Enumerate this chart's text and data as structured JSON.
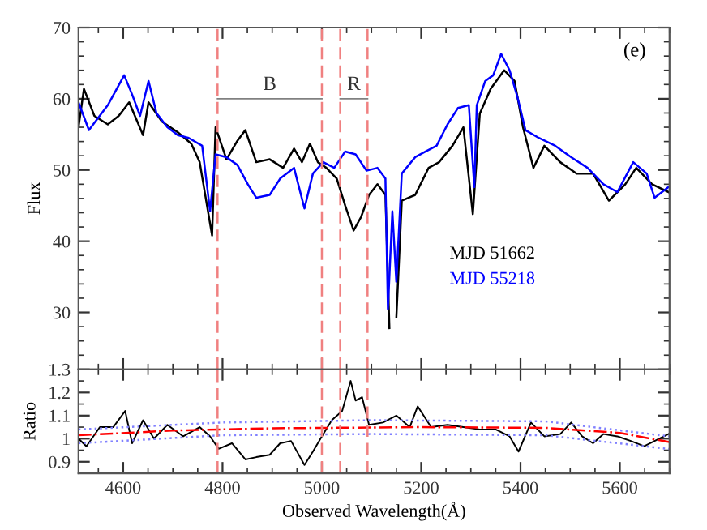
{
  "chart_data": [
    {
      "type": "line",
      "ylabel": "Flux",
      "xlim": [
        4510,
        5700
      ],
      "ylim": [
        22,
        70
      ],
      "xticks": [
        4600,
        4800,
        5000,
        5200,
        5400,
        5600
      ],
      "yticks": [
        30,
        40,
        50,
        60,
        70
      ],
      "tick_labels": "y",
      "legend": "center right",
      "grid": false,
      "annotations": [
        "(e)",
        "B",
        "R"
      ],
      "ref_lines": [
        {
          "axis": "x",
          "value": 4790,
          "color": "#f08080",
          "line_style": "dashed"
        },
        {
          "axis": "x",
          "value": 5000,
          "color": "#f08080",
          "line_style": "dashed"
        },
        {
          "axis": "x",
          "value": 5037,
          "color": "#f08080",
          "line_style": "dashed"
        },
        {
          "axis": "x",
          "value": 5092,
          "color": "#f08080",
          "line_style": "dashed"
        }
      ],
      "series": [
        {
          "name": "MJD 51662",
          "color": "#000000",
          "x": [
            4510,
            4521,
            4542,
            4569,
            4591,
            4612,
            4640,
            4651,
            4678,
            4710,
            4737,
            4754,
            4779,
            4786,
            4808,
            4830,
            4846,
            4868,
            4895,
            4922,
            4944,
            4960,
            4976,
            4992,
            5009,
            5030,
            5047,
            5064,
            5079,
            5095,
            5112,
            5128,
            5136,
            5142,
            5150,
            5161,
            5188,
            5215,
            5236,
            5263,
            5285,
            5304,
            5318,
            5340,
            5367,
            5388,
            5405,
            5426,
            5448,
            5480,
            5513,
            5546,
            5578,
            5611,
            5633,
            5665,
            5698
          ],
          "values": [
            56,
            61.4,
            57.6,
            56.4,
            57.6,
            59.5,
            54.9,
            59.5,
            56.8,
            55.3,
            53.7,
            51.1,
            40.8,
            56,
            51.5,
            54.1,
            55.6,
            51.1,
            51.5,
            50.3,
            53,
            51.1,
            53.7,
            51.1,
            50.3,
            48.8,
            45,
            41.5,
            43.4,
            46.5,
            48,
            46.5,
            27.8,
            null,
            29.3,
            45.7,
            46.5,
            50.3,
            51.1,
            53.4,
            56,
            43.8,
            57.9,
            61.4,
            64,
            62.5,
            56,
            50.3,
            53.4,
            51.1,
            49.5,
            49.5,
            45.7,
            48,
            50.3,
            48,
            46.9
          ]
        },
        {
          "name": "MJD 55218",
          "color": "#0000ff",
          "x": [
            4510,
            4531,
            4569,
            4602,
            4618,
            4634,
            4651,
            4667,
            4689,
            4710,
            4732,
            4759,
            4775,
            4786,
            4808,
            4830,
            4851,
            4868,
            4895,
            4916,
            4944,
            4965,
            4982,
            5003,
            5025,
            5047,
            5068,
            5090,
            5112,
            5128,
            5133,
            5142,
            5150,
            5161,
            5188,
            5209,
            5231,
            5253,
            5274,
            5296,
            5307,
            5312,
            5329,
            5345,
            5361,
            5378,
            5394,
            5410,
            5437,
            5470,
            5502,
            5535,
            5567,
            5595,
            5627,
            5654,
            5670,
            5698
          ],
          "values": [
            59.5,
            55.6,
            59.1,
            63.3,
            60.6,
            57.6,
            62.5,
            58,
            56,
            54.9,
            54.5,
            53.4,
            44.2,
            52.2,
            51.8,
            50.7,
            48,
            46.1,
            46.5,
            48.8,
            50.3,
            44.6,
            49.5,
            51.1,
            50.3,
            52.6,
            52.2,
            49.9,
            50.3,
            48.8,
            30.5,
            44.2,
            34.3,
            49.5,
            51.8,
            52.6,
            53.4,
            56.4,
            58.7,
            59.1,
            47.6,
            59.1,
            62.5,
            63.3,
            66.3,
            64,
            60.2,
            55.6,
            54.5,
            53.4,
            51.8,
            50.3,
            48,
            46.9,
            51.1,
            49.5,
            46.1,
            47.6
          ]
        },
        {
          "color": "#808080",
          "x": [
            4790,
            5000
          ],
          "values": [
            60,
            60
          ]
        },
        {
          "color": "#808080",
          "x": [
            5037,
            5092
          ],
          "values": [
            60,
            60
          ]
        }
      ]
    },
    {
      "type": "line",
      "ylabel": "Ratio",
      "xlabel": "Observed Wavelength(Å)",
      "xlim": [
        4510,
        5700
      ],
      "ylim": [
        0.85,
        1.3
      ],
      "xticks": [
        4600,
        4800,
        5000,
        5200,
        5400,
        5600
      ],
      "yticks": [
        0.9,
        1,
        1.1,
        1.2,
        1.3
      ],
      "grid": false,
      "ref_lines": [
        {
          "axis": "x",
          "value": 4790,
          "color": "#f08080",
          "line_style": "dashed"
        },
        {
          "axis": "x",
          "value": 5000,
          "color": "#f08080",
          "line_style": "dashed"
        },
        {
          "axis": "x",
          "value": 5037,
          "color": "#f08080",
          "line_style": "dashed"
        },
        {
          "axis": "x",
          "value": 5092,
          "color": "#f08080",
          "line_style": "dashed"
        }
      ],
      "series": [
        {
          "color": "#000000",
          "x": [
            4510,
            4526,
            4553,
            4580,
            4604,
            4618,
            4640,
            4662,
            4689,
            4721,
            4754,
            4775,
            4792,
            4819,
            4846,
            4868,
            4895,
            4916,
            4938,
            4965,
            4982,
            5000,
            5020,
            5041,
            5058,
            5068,
            5081,
            5095,
            5123,
            5150,
            5177,
            5193,
            5220,
            5253,
            5285,
            5318,
            5350,
            5378,
            5396,
            5421,
            5448,
            5480,
            5502,
            5524,
            5546,
            5567,
            5595,
            5622,
            5649,
            5670,
            5698
          ],
          "values": [
            1.0,
            0.967,
            1.05,
            1.05,
            1.12,
            0.98,
            1.08,
            1.0,
            1.06,
            1.01,
            1.05,
            1.01,
            0.956,
            0.98,
            0.91,
            0.92,
            0.93,
            0.98,
            0.99,
            0.886,
            0.944,
            1.01,
            1.08,
            1.12,
            1.25,
            1.165,
            1.18,
            1.06,
            1.07,
            1.1,
            1.05,
            1.14,
            1.05,
            1.06,
            1.05,
            1.04,
            1.04,
            1.01,
            0.944,
            1.07,
            1.01,
            1.02,
            1.07,
            1.01,
            0.98,
            1.02,
            1.01,
            0.99,
            0.967,
            0.99,
            1.02
          ]
        },
        {
          "color": "#ff0000",
          "line_style": "dashdot",
          "x": [
            4510,
            4700,
            4900,
            5200,
            5450,
            5600,
            5700
          ],
          "values": [
            1.015,
            1.035,
            1.045,
            1.05,
            1.047,
            1.025,
            0.985
          ]
        },
        {
          "color": "#8080ff",
          "line_style": "dotted",
          "x": [
            4510,
            4800,
            5100,
            5450,
            5700
          ],
          "values": [
            1.04,
            1.07,
            1.08,
            1.075,
            1.01
          ]
        },
        {
          "color": "#8080ff",
          "line_style": "dotted",
          "x": [
            4510,
            4800,
            5100,
            5450,
            5700
          ],
          "values": [
            0.98,
            1.015,
            1.02,
            1.015,
            0.955
          ]
        }
      ]
    }
  ]
}
